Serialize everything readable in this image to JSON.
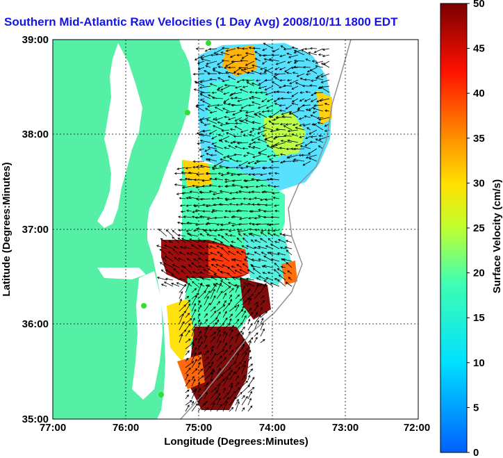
{
  "title": "Southern Mid-Atlantic Raw Velocities (1 Day Avg) 2008/10/11 1800 EDT",
  "xlabel": "Longitude (Degrees:Minutes)",
  "ylabel": "Latitude (Degrees:Minutes)",
  "xticks": [
    "77:00",
    "76:00",
    "75:00",
    "74:00",
    "73:00",
    "72:00"
  ],
  "yticks": [
    "39:00",
    "38:00",
    "37:00",
    "36:00",
    "35:00"
  ],
  "colorbar": {
    "label": "Surface Velocity (cm/s)",
    "ticks": [
      "50",
      "45",
      "40",
      "35",
      "30",
      "25",
      "20",
      "15",
      "10",
      "5",
      "0"
    ],
    "min": 0,
    "max": 50
  },
  "colors": {
    "land": "#55f0a5",
    "ocean": "#ffffff",
    "title": "#1414e6",
    "station": "#33dd33"
  }
}
